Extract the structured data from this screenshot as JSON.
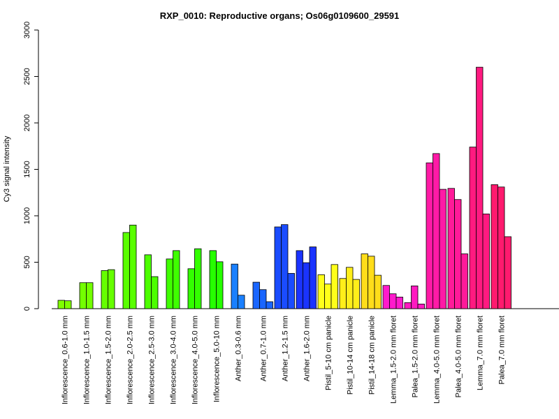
{
  "chart_data": {
    "type": "bar",
    "title": "RXP_0010: Reproductive organs; Os06g0109600_29591",
    "xlabel": "",
    "ylabel": "Cy3 signal intensity",
    "ylim": [
      0,
      3000
    ],
    "yticks": [
      0,
      500,
      1000,
      1500,
      2000,
      2500,
      3000
    ],
    "grid": false,
    "groups": [
      {
        "label": "Inflorescence_0.6-1.0 mm",
        "color": "#80ff00",
        "values": [
          90,
          85
        ]
      },
      {
        "label": "Inflorescence_1.0-1.5 mm",
        "color": "#73ff00",
        "values": [
          280,
          280
        ]
      },
      {
        "label": "Inflorescence_1.5-2.0 mm",
        "color": "#66ff00",
        "values": [
          410,
          420
        ]
      },
      {
        "label": "Inflorescence_2.0-2.5 mm",
        "color": "#59ff00",
        "values": [
          820,
          900
        ]
      },
      {
        "label": "Inflorescence_2.5-3.0 mm",
        "color": "#4cff00",
        "values": [
          580,
          345
        ]
      },
      {
        "label": "Inflorescence_3.0-4.0 mm",
        "color": "#3fff00",
        "values": [
          535,
          625
        ]
      },
      {
        "label": "Inflorescence_4.0-5.0 mm",
        "color": "#33ff00",
        "values": [
          430,
          645
        ]
      },
      {
        "label": "Inflorescence_5.0-10 mm",
        "color": "#26ff00",
        "values": [
          625,
          505
        ]
      },
      {
        "label": "Anther_0.3-0.6 mm",
        "color": "#1a80ff",
        "values": [
          480,
          145
        ]
      },
      {
        "label": "Anther_0.7-1.0 mm",
        "color": "#1a66ff",
        "values": [
          285,
          205,
          75
        ]
      },
      {
        "label": "Anther_1.2-1.5 mm",
        "color": "#1a4cff",
        "values": [
          880,
          905,
          380
        ]
      },
      {
        "label": "Anther_1.6-2.0 mm",
        "color": "#1a33ff",
        "values": [
          625,
          495,
          665
        ]
      },
      {
        "label": "Pistil_5-10 cm panicle",
        "color": "#ffff1a",
        "values": [
          365,
          265,
          475
        ]
      },
      {
        "label": "Pistil_10-14 cm panicle",
        "color": "#ffee1a",
        "values": [
          325,
          445,
          315
        ]
      },
      {
        "label": "Pistil_14-18 cm panicle",
        "color": "#ffdd1a",
        "values": [
          590,
          565,
          360
        ]
      },
      {
        "label": "Lemma_1.5-2.0 mm floret",
        "color": "#ff1acc",
        "values": [
          250,
          160,
          125
        ]
      },
      {
        "label": "Palea_1.5-2.0 mm floret",
        "color": "#ff1ac0",
        "values": [
          65,
          245,
          50
        ]
      },
      {
        "label": "Lemma_4.0-5.0 mm floret",
        "color": "#ff1aa6",
        "values": [
          1570,
          1670,
          1285
        ]
      },
      {
        "label": "Palea_4.0-5.0 mm floret",
        "color": "#ff1a99",
        "values": [
          1295,
          1175,
          590
        ]
      },
      {
        "label": "Lemma_7.0 mm floret",
        "color": "#ff1a80",
        "values": [
          1740,
          2600,
          1020
        ]
      },
      {
        "label": "Palea_7.0 mm floret",
        "color": "#ff1a6e",
        "values": [
          1335,
          1310,
          775
        ]
      }
    ]
  }
}
